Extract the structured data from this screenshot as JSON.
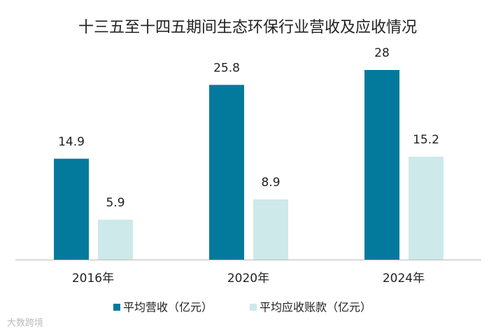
{
  "chart_data": {
    "type": "bar",
    "title": "十三五至十四五期间生态环保行业营收及应收情况",
    "categories": [
      "2016年",
      "2020年",
      "2024年"
    ],
    "series": [
      {
        "name": "平均营收（亿元）",
        "color": "#037a9b",
        "values": [
          14.9,
          25.8,
          28
        ]
      },
      {
        "name": "平均应收账款（亿元）",
        "color": "#cde9ea",
        "values": [
          5.9,
          8.9,
          15.2
        ]
      }
    ],
    "legend": "bottom",
    "watermark": "大数跨境"
  }
}
